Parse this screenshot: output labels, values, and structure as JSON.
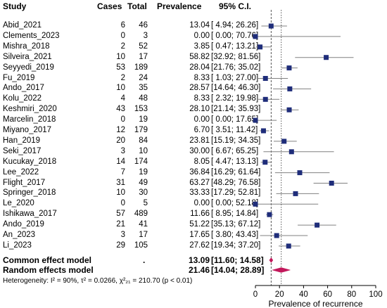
{
  "headers": {
    "study": "Study",
    "cases": "Cases",
    "total": "Total",
    "prevalence": "Prevalence",
    "ci": "95% C.I."
  },
  "footer": {
    "common_label": "Common effect model",
    "common_dot": ".",
    "common_prev": "13.09",
    "common_ci": "[11.60; 14.58]",
    "random_label": "Random effects model",
    "random_prev": "21.46",
    "random_ci": "[14.04; 28.89]",
    "heterogeneity": "Heterogeneity: I² = 90%, τ² = 0.0266, χ²₂₁ = 210.70 (p < 0.01)"
  },
  "colors": {
    "square": "#1f2d7a",
    "diamond": "#c2185b",
    "ci_line": "#808080",
    "ref_line": "#555555"
  },
  "chart_data": {
    "type": "forest",
    "xlabel": "Prevalence of recurrence",
    "xlim": [
      0,
      100
    ],
    "xticks": [
      0,
      20,
      40,
      60,
      80,
      100
    ],
    "common_effect": {
      "est": 13.09,
      "lo": 11.6,
      "hi": 14.58
    },
    "random_effects": {
      "est": 21.46,
      "lo": 14.04,
      "hi": 28.89
    },
    "studies": [
      {
        "name": "Abid_2021",
        "cases": "6",
        "total": "46",
        "prev": "13.04",
        "ci": "[ 4.94; 26.26]",
        "est": 13.04,
        "lo": 4.94,
        "hi": 26.26
      },
      {
        "name": "Clements_2023",
        "cases": "0",
        "total": "3",
        "prev": "0.00",
        "ci": "[ 0.00; 70.76]",
        "est": 0.0,
        "lo": 0.0,
        "hi": 70.76
      },
      {
        "name": "Mishra_2018",
        "cases": "2",
        "total": "52",
        "prev": "3.85",
        "ci": "[ 0.47; 13.21]",
        "est": 3.85,
        "lo": 0.47,
        "hi": 13.21
      },
      {
        "name": "Silveira_2021",
        "cases": "10",
        "total": "17",
        "prev": "58.82",
        "ci": "[32.92; 81.56]",
        "est": 58.82,
        "lo": 32.92,
        "hi": 81.56
      },
      {
        "name": "Seyyedi_2019",
        "cases": "53",
        "total": "189",
        "prev": "28.04",
        "ci": "[21.76; 35.02]",
        "est": 28.04,
        "lo": 21.76,
        "hi": 35.02
      },
      {
        "name": "Fu_2019",
        "cases": "2",
        "total": "24",
        "prev": "8.33",
        "ci": "[ 1.03; 27.00]",
        "est": 8.33,
        "lo": 1.03,
        "hi": 27.0
      },
      {
        "name": "Ando_2017",
        "cases": "10",
        "total": "35",
        "prev": "28.57",
        "ci": "[14.64; 46.30]",
        "est": 28.57,
        "lo": 14.64,
        "hi": 46.3
      },
      {
        "name": "Kolu_2022",
        "cases": "4",
        "total": "48",
        "prev": "8.33",
        "ci": "[ 2.32; 19.98]",
        "est": 8.33,
        "lo": 2.32,
        "hi": 19.98
      },
      {
        "name": "Keshmiri_2020",
        "cases": "43",
        "total": "153",
        "prev": "28.10",
        "ci": "[21.14; 35.93]",
        "est": 28.1,
        "lo": 21.14,
        "hi": 35.93
      },
      {
        "name": "Marcelin_2018",
        "cases": "0",
        "total": "19",
        "prev": "0.00",
        "ci": "[ 0.00; 17.65]",
        "est": 0.0,
        "lo": 0.0,
        "hi": 17.65
      },
      {
        "name": "Miyano_2017",
        "cases": "12",
        "total": "179",
        "prev": "6.70",
        "ci": "[ 3.51; 11.42]",
        "est": 6.7,
        "lo": 3.51,
        "hi": 11.42
      },
      {
        "name": "Han_2019",
        "cases": "20",
        "total": "84",
        "prev": "23.81",
        "ci": "[15.19; 34.35]",
        "est": 23.81,
        "lo": 15.19,
        "hi": 34.35
      },
      {
        "name": "Seki_2017",
        "cases": "3",
        "total": "10",
        "prev": "30.00",
        "ci": "[ 6.67; 65.25]",
        "est": 30.0,
        "lo": 6.67,
        "hi": 65.25
      },
      {
        "name": "Kucukay_2018",
        "cases": "14",
        "total": "174",
        "prev": "8.05",
        "ci": "[ 4.47; 13.13]",
        "est": 8.05,
        "lo": 4.47,
        "hi": 13.13
      },
      {
        "name": "Lee_2022",
        "cases": "7",
        "total": "19",
        "prev": "36.84",
        "ci": "[16.29; 61.64]",
        "est": 36.84,
        "lo": 16.29,
        "hi": 61.64
      },
      {
        "name": "Flight_2017",
        "cases": "31",
        "total": "49",
        "prev": "63.27",
        "ci": "[48.29; 76.58]",
        "est": 63.27,
        "lo": 48.29,
        "hi": 76.58
      },
      {
        "name": "Springer_2018",
        "cases": "10",
        "total": "30",
        "prev": "33.33",
        "ci": "[17.29; 52.81]",
        "est": 33.33,
        "lo": 17.29,
        "hi": 52.81
      },
      {
        "name": "Le_2020",
        "cases": "0",
        "total": "5",
        "prev": "0.00",
        "ci": "[ 0.00; 52.18]",
        "est": 0.0,
        "lo": 0.0,
        "hi": 52.18
      },
      {
        "name": "Ishikawa_2017",
        "cases": "57",
        "total": "489",
        "prev": "11.66",
        "ci": "[ 8.95; 14.84]",
        "est": 11.66,
        "lo": 8.95,
        "hi": 14.84
      },
      {
        "name": "Ando_2019",
        "cases": "21",
        "total": "41",
        "prev": "51.22",
        "ci": "[35.13; 67.12]",
        "est": 51.22,
        "lo": 35.13,
        "hi": 67.12
      },
      {
        "name": "An_2023",
        "cases": "3",
        "total": "17",
        "prev": "17.65",
        "ci": "[ 3.80; 43.43]",
        "est": 17.65,
        "lo": 3.8,
        "hi": 43.43
      },
      {
        "name": "Li_2023",
        "cases": "29",
        "total": "105",
        "prev": "27.62",
        "ci": "[19.34; 37.20]",
        "est": 27.62,
        "lo": 19.34,
        "hi": 37.2
      }
    ]
  }
}
